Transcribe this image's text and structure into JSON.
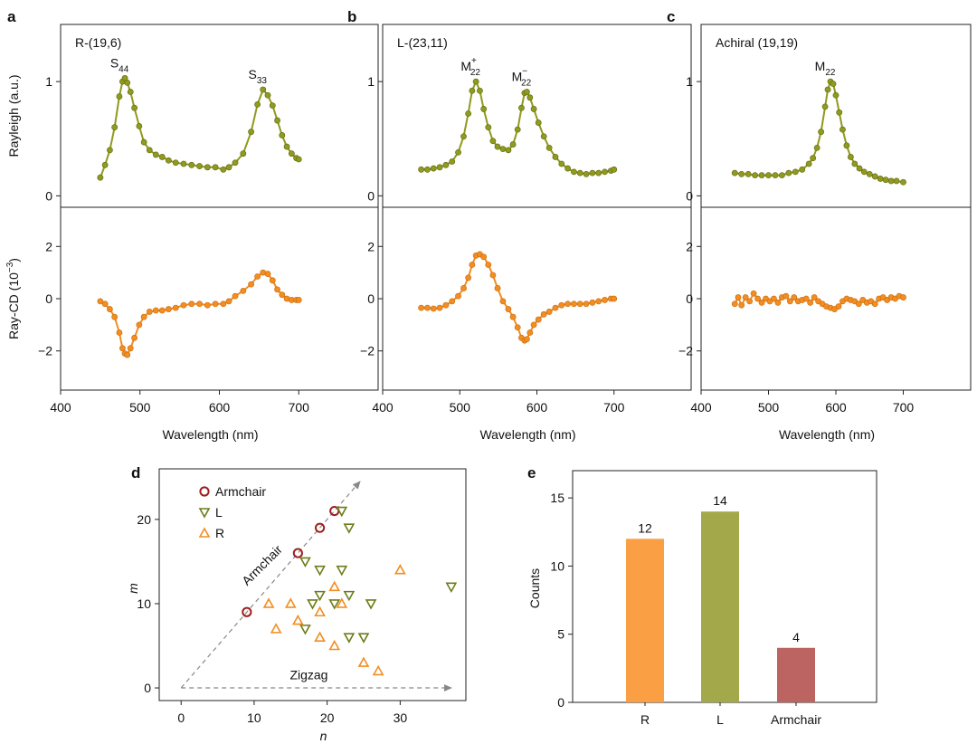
{
  "colors": {
    "rayleigh": "#8f9a1e",
    "raycd": "#f28d22",
    "armchair": "#a01e1e",
    "L": "#6b7d1a",
    "R": "#f28d22",
    "bar_R": "#fb9f45",
    "bar_L": "#a3a94a",
    "bar_Armchair": "#bb6461"
  },
  "panels_top": [
    {
      "letter": "a",
      "title": "R-(19,6)",
      "peaks": [
        {
          "base": "S",
          "sub": "44",
          "sup": "",
          "wl": 481,
          "val": 1.03
        },
        {
          "base": "S",
          "sub": "33",
          "sup": "",
          "wl": 655,
          "val": 0.93
        }
      ]
    },
    {
      "letter": "b",
      "title": "L-(23,11)",
      "peaks": [
        {
          "base": "M",
          "sub": "22",
          "sup": "+",
          "wl": 521,
          "val": 1.0
        },
        {
          "base": "M",
          "sub": "22",
          "sup": "−",
          "wl": 587,
          "val": 0.91
        }
      ]
    },
    {
      "letter": "c",
      "title": "Achiral (19,19)",
      "peaks": [
        {
          "base": "M",
          "sub": "22",
          "sup": "",
          "wl": 592,
          "val": 1.0
        }
      ]
    }
  ],
  "axes_top": {
    "xlabel": "Wavelength (nm)",
    "xlim": [
      400,
      800
    ],
    "xticks": [
      "400",
      "500",
      "600",
      "700"
    ],
    "ylabel_rayleigh": "Rayleigh (a.u.)",
    "ylabel_cd_prefix": "Ray-CD (10",
    "ylabel_cd_exp": "−3",
    "ylabel_cd_suffix": ")",
    "rayleigh_ylim": [
      -0.1,
      1.5
    ],
    "rayleigh_yticks": [
      "0",
      "1"
    ],
    "cd_ylim": [
      -3.5,
      3.5
    ],
    "cd_yticks": [
      "2",
      "0",
      "−2"
    ]
  },
  "panel_d": {
    "letter": "d",
    "xlabel": "n",
    "ylabel": "m",
    "xlim": [
      -3,
      39
    ],
    "ylim": [
      -1.5,
      26
    ],
    "xticks": [
      "0",
      "10",
      "20",
      "30"
    ],
    "yticks": [
      "0",
      "10",
      "20"
    ],
    "legend": [
      "Armchair",
      "L",
      "R"
    ],
    "armchair_label": "Armchair",
    "zigzag_label": "Zigzag"
  },
  "panel_e": {
    "letter": "e",
    "ylabel": "Counts",
    "yticks": [
      "0",
      "5",
      "10",
      "15"
    ],
    "ylim": [
      0,
      17
    ]
  },
  "chart_data": [
    {
      "panel": "a",
      "type": "line",
      "title": "R-(19,6)",
      "xlabel": "Wavelength (nm)",
      "series": [
        {
          "name": "Rayleigh (a.u.)",
          "x": [
            450,
            456,
            462,
            468,
            474,
            478,
            481,
            484,
            488,
            493,
            499,
            505,
            512,
            520,
            528,
            536,
            545,
            555,
            565,
            575,
            585,
            595,
            605,
            612,
            620,
            630,
            640,
            648,
            655,
            661,
            667,
            673,
            679,
            685,
            691,
            697,
            700
          ],
          "y": [
            0.16,
            0.27,
            0.4,
            0.6,
            0.87,
            1.0,
            1.03,
            0.99,
            0.91,
            0.77,
            0.61,
            0.47,
            0.4,
            0.36,
            0.34,
            0.31,
            0.29,
            0.28,
            0.27,
            0.26,
            0.25,
            0.25,
            0.23,
            0.25,
            0.29,
            0.37,
            0.56,
            0.8,
            0.93,
            0.88,
            0.79,
            0.66,
            0.53,
            0.43,
            0.37,
            0.33,
            0.32
          ]
        },
        {
          "name": "Ray-CD",
          "x": [
            450,
            456,
            462,
            468,
            474,
            478,
            481,
            484,
            488,
            493,
            499,
            505,
            512,
            520,
            528,
            536,
            545,
            555,
            565,
            575,
            585,
            595,
            605,
            612,
            620,
            630,
            640,
            648,
            655,
            661,
            667,
            673,
            679,
            685,
            691,
            697,
            700
          ],
          "y": [
            -0.1,
            -0.2,
            -0.4,
            -0.7,
            -1.3,
            -1.9,
            -2.1,
            -2.15,
            -1.9,
            -1.5,
            -1.0,
            -0.7,
            -0.5,
            -0.45,
            -0.45,
            -0.4,
            -0.35,
            -0.25,
            -0.2,
            -0.2,
            -0.25,
            -0.2,
            -0.2,
            -0.1,
            0.1,
            0.3,
            0.55,
            0.85,
            1.0,
            0.95,
            0.7,
            0.35,
            0.15,
            0.0,
            -0.05,
            -0.05,
            -0.05
          ]
        }
      ]
    },
    {
      "panel": "b",
      "type": "line",
      "title": "L-(23,11)",
      "xlabel": "Wavelength (nm)",
      "series": [
        {
          "name": "Rayleigh (a.u.)",
          "x": [
            450,
            458,
            466,
            474,
            482,
            490,
            498,
            505,
            511,
            516,
            521,
            526,
            531,
            537,
            543,
            549,
            556,
            563,
            569,
            575,
            580,
            584,
            587,
            591,
            596,
            602,
            609,
            616,
            624,
            632,
            640,
            648,
            656,
            664,
            672,
            680,
            688,
            696,
            700
          ],
          "y": [
            0.23,
            0.23,
            0.24,
            0.25,
            0.27,
            0.3,
            0.38,
            0.52,
            0.72,
            0.92,
            1.0,
            0.92,
            0.76,
            0.6,
            0.48,
            0.43,
            0.41,
            0.4,
            0.45,
            0.58,
            0.77,
            0.9,
            0.91,
            0.86,
            0.76,
            0.64,
            0.52,
            0.42,
            0.34,
            0.28,
            0.24,
            0.21,
            0.2,
            0.19,
            0.2,
            0.2,
            0.21,
            0.22,
            0.23
          ]
        },
        {
          "name": "Ray-CD",
          "x": [
            450,
            458,
            466,
            474,
            482,
            490,
            498,
            505,
            511,
            516,
            521,
            526,
            531,
            537,
            543,
            549,
            556,
            563,
            569,
            575,
            580,
            584,
            587,
            591,
            596,
            602,
            609,
            616,
            624,
            632,
            640,
            648,
            656,
            664,
            672,
            680,
            688,
            696,
            700
          ],
          "y": [
            -0.35,
            -0.35,
            -0.38,
            -0.35,
            -0.25,
            -0.1,
            0.1,
            0.4,
            0.8,
            1.3,
            1.65,
            1.7,
            1.6,
            1.3,
            0.9,
            0.4,
            -0.1,
            -0.4,
            -0.7,
            -1.1,
            -1.5,
            -1.6,
            -1.55,
            -1.3,
            -1.0,
            -0.8,
            -0.6,
            -0.5,
            -0.35,
            -0.25,
            -0.2,
            -0.2,
            -0.2,
            -0.2,
            -0.15,
            -0.1,
            -0.05,
            0.0,
            0.0
          ]
        }
      ]
    },
    {
      "panel": "c",
      "type": "line",
      "title": "Achiral (19,19)",
      "xlabel": "Wavelength (nm)",
      "series": [
        {
          "name": "Rayleigh (a.u.)",
          "x": [
            450,
            460,
            470,
            480,
            490,
            500,
            510,
            520,
            530,
            540,
            550,
            560,
            566,
            572,
            578,
            584,
            588,
            592,
            596,
            600,
            605,
            610,
            616,
            622,
            628,
            635,
            642,
            650,
            658,
            666,
            674,
            682,
            690,
            700
          ],
          "y": [
            0.2,
            0.19,
            0.19,
            0.18,
            0.18,
            0.18,
            0.18,
            0.18,
            0.2,
            0.21,
            0.23,
            0.28,
            0.33,
            0.42,
            0.56,
            0.78,
            0.93,
            1.0,
            0.98,
            0.88,
            0.73,
            0.58,
            0.44,
            0.34,
            0.28,
            0.24,
            0.21,
            0.19,
            0.17,
            0.15,
            0.14,
            0.13,
            0.13,
            0.12
          ]
        },
        {
          "name": "Ray-CD",
          "x": [
            450,
            455,
            460,
            466,
            472,
            478,
            484,
            490,
            496,
            502,
            508,
            514,
            520,
            526,
            532,
            538,
            544,
            550,
            556,
            562,
            568,
            574,
            580,
            586,
            592,
            598,
            604,
            610,
            616,
            622,
            628,
            634,
            640,
            646,
            652,
            658,
            664,
            670,
            676,
            682,
            688,
            694,
            700
          ],
          "y": [
            -0.2,
            0.05,
            -0.25,
            0.05,
            -0.1,
            0.2,
            0.0,
            -0.15,
            0.0,
            -0.1,
            0.0,
            -0.15,
            0.05,
            0.1,
            -0.1,
            0.05,
            -0.1,
            -0.05,
            0.0,
            -0.15,
            0.05,
            -0.1,
            -0.2,
            -0.3,
            -0.35,
            -0.4,
            -0.3,
            -0.1,
            0.0,
            -0.05,
            -0.1,
            -0.2,
            -0.05,
            -0.15,
            -0.1,
            -0.2,
            0.0,
            0.05,
            -0.05,
            0.05,
            0.0,
            0.1,
            0.05
          ]
        }
      ]
    },
    {
      "panel": "d",
      "type": "scatter",
      "xlabel": "n",
      "ylabel": "m",
      "series": [
        {
          "name": "Armchair",
          "points": [
            [
              9,
              9
            ],
            [
              16,
              16
            ],
            [
              19,
              19
            ],
            [
              21,
              21
            ]
          ]
        },
        {
          "name": "L",
          "points": [
            [
              22,
              21
            ],
            [
              23,
              19
            ],
            [
              17,
              15
            ],
            [
              19,
              14
            ],
            [
              22,
              14
            ],
            [
              19,
              11
            ],
            [
              23,
              11
            ],
            [
              18,
              10
            ],
            [
              21,
              10
            ],
            [
              26,
              10
            ],
            [
              17,
              7
            ],
            [
              23,
              6
            ],
            [
              25,
              6
            ],
            [
              37,
              12
            ]
          ]
        },
        {
          "name": "R",
          "points": [
            [
              30,
              14
            ],
            [
              21,
              12
            ],
            [
              12,
              10
            ],
            [
              15,
              10
            ],
            [
              19,
              9
            ],
            [
              22,
              10
            ],
            [
              13,
              7
            ],
            [
              16,
              8
            ],
            [
              19,
              6
            ],
            [
              21,
              5
            ],
            [
              25,
              3
            ],
            [
              27,
              2
            ]
          ]
        }
      ]
    },
    {
      "panel": "e",
      "type": "bar",
      "ylabel": "Counts",
      "categories": [
        "R",
        "L",
        "Armchair"
      ],
      "values": [
        12,
        14,
        4
      ],
      "value_labels": [
        "12",
        "14",
        "4"
      ],
      "ylim": [
        0,
        17
      ]
    }
  ]
}
